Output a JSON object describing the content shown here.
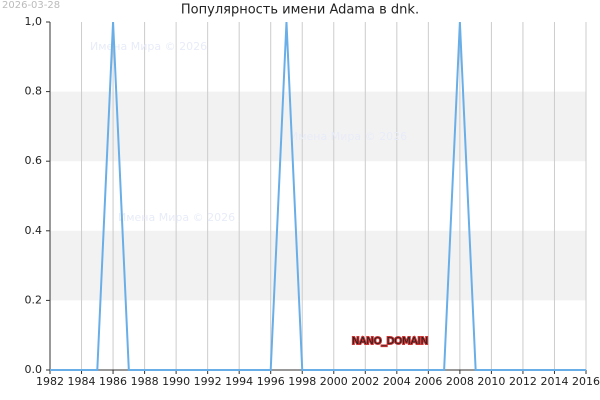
{
  "chart_data": {
    "type": "line",
    "title": "Популярность имени Adama в dnk.",
    "date_stamp": "2026-03-28",
    "watermarks": [
      "Имена Мира © 2026",
      "Имена Мира © 2026",
      "Имена Мира © 2026"
    ],
    "annotation": "NANO_DOMAIN",
    "x": [
      1982,
      1983,
      1984,
      1985,
      1986,
      1987,
      1988,
      1989,
      1990,
      1991,
      1992,
      1993,
      1994,
      1995,
      1996,
      1997,
      1998,
      1999,
      2000,
      2001,
      2002,
      2003,
      2004,
      2005,
      2006,
      2007,
      2008,
      2009,
      2010,
      2011,
      2012,
      2013,
      2014,
      2015,
      2016
    ],
    "values": [
      0,
      0,
      0,
      0,
      1,
      0,
      0,
      0,
      0,
      0,
      0,
      0,
      0,
      0,
      0,
      1,
      0,
      0,
      0,
      0,
      0,
      0,
      0,
      0,
      0,
      0,
      1,
      0,
      0,
      0,
      0,
      0,
      0,
      0,
      0
    ],
    "color": "#6aaee8",
    "xlim": [
      1982,
      2016
    ],
    "xticks": [
      1982,
      1984,
      1986,
      1988,
      1990,
      1992,
      1994,
      1996,
      1998,
      2000,
      2002,
      2004,
      2006,
      2008,
      2010,
      2012,
      2014,
      2016
    ],
    "ylim": [
      0,
      1
    ],
    "yticks": [
      {
        "value": 0,
        "label": "0.0"
      },
      0.2,
      0.4,
      0.6,
      0.8,
      {
        "value": 1,
        "label": "1,0"
      }
    ],
    "grid": true
  }
}
